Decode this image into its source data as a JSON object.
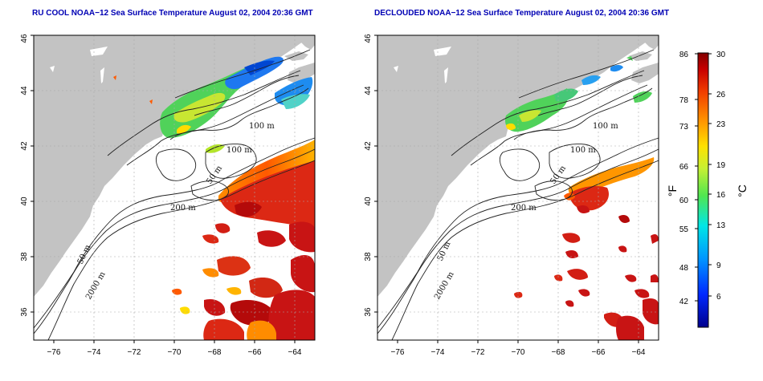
{
  "left_panel": {
    "title": "RU COOL NOAA−12 Sea Surface Temperature August 02, 2004 20:36 GMT"
  },
  "right_panel": {
    "title": "DECLOUDED NOAA−12 Sea Surface Temperature August 02, 2004 20:36 GMT"
  },
  "axes": {
    "lon_ticks": [
      "−76",
      "−74",
      "−72",
      "−70",
      "−68",
      "−66",
      "−64"
    ],
    "lat_ticks": [
      "36",
      "38",
      "40",
      "42",
      "44",
      "46"
    ],
    "lon_range": [
      -77.0,
      -63.0
    ],
    "lat_range": [
      35.0,
      46.0
    ]
  },
  "isobaths": {
    "m100": "100 m",
    "m50": "50 m",
    "m200": "200 m",
    "m2000": "2000 m"
  },
  "colorbar": {
    "fahrenheit_label": "°F",
    "celsius_label": "°C",
    "fahrenheit_ticks": [
      "86",
      "78",
      "73",
      "66",
      "60",
      "55",
      "48",
      "42"
    ],
    "celsius_ticks": [
      "30",
      "26",
      "23",
      "19",
      "16",
      "13",
      "9",
      "6"
    ],
    "range_c": [
      3,
      30
    ]
  },
  "colors": {
    "land": "#c3c3c3",
    "ocean": "#ffffff",
    "title": "#0000b4",
    "warm": "#c81414",
    "cool": "#1e64e6"
  }
}
